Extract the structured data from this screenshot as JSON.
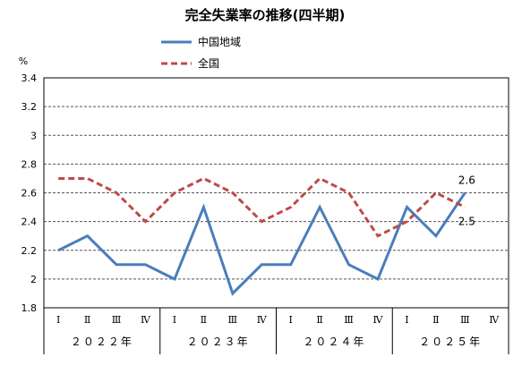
{
  "chart_data": {
    "type": "line",
    "title": "完全失業率の推移(四半期)",
    "ylabel": "%",
    "ylim": [
      1.8,
      3.4
    ],
    "yticks": [
      "1.8",
      "2",
      "2.2",
      "2.4",
      "2.6",
      "2.8",
      "3",
      "3.2",
      "3.4"
    ],
    "categories": [
      "Ⅰ",
      "Ⅱ",
      "Ⅲ",
      "Ⅳ",
      "Ⅰ",
      "Ⅱ",
      "Ⅲ",
      "Ⅳ",
      "Ⅰ",
      "Ⅱ",
      "Ⅲ",
      "Ⅳ",
      "Ⅰ",
      "Ⅱ",
      "Ⅲ",
      "Ⅳ"
    ],
    "years": [
      "２０２２年",
      "２０２３年",
      "２０２４年",
      "２０２５年"
    ],
    "grid": true,
    "legend_position": "top",
    "series": [
      {
        "name": "中国地域",
        "style": "solid",
        "color": "#4a7ebb",
        "values": [
          2.2,
          2.3,
          2.1,
          2.1,
          2.0,
          2.5,
          1.9,
          2.1,
          2.1,
          2.5,
          2.1,
          2.0,
          2.5,
          2.3,
          2.6,
          null
        ]
      },
      {
        "name": "全国",
        "style": "dashed",
        "color": "#be4b48",
        "values": [
          2.7,
          2.7,
          2.6,
          2.4,
          2.6,
          2.7,
          2.6,
          2.4,
          2.5,
          2.7,
          2.6,
          2.3,
          2.4,
          2.6,
          2.5,
          null
        ]
      }
    ],
    "annotations": [
      {
        "series": 0,
        "index": 14,
        "text": "2.6"
      },
      {
        "series": 1,
        "index": 14,
        "text": "2.5"
      }
    ]
  }
}
